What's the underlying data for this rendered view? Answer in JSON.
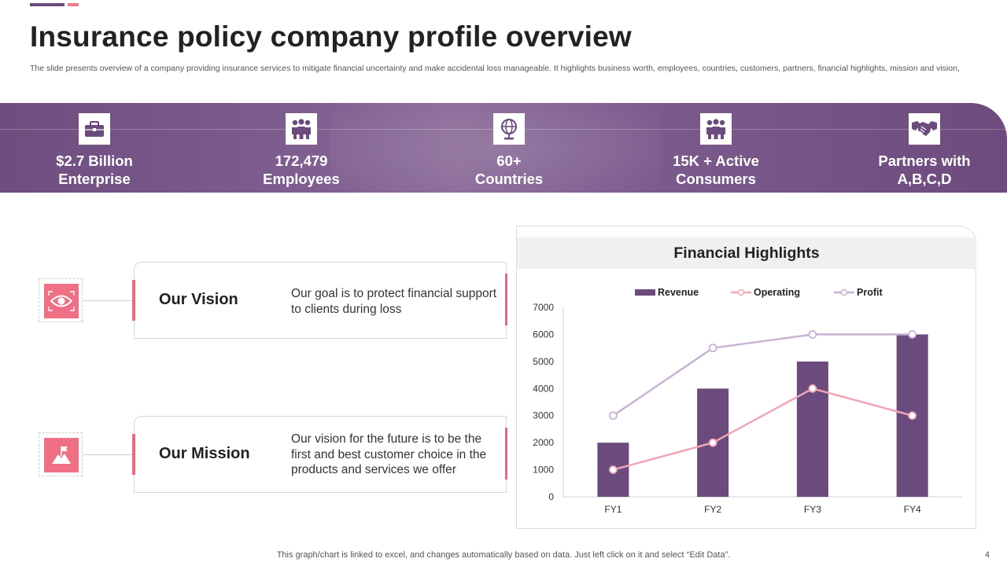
{
  "title": "Insurance policy company profile overview",
  "subtitle": "The slide presents overview of a company providing insurance services to mitigate financial uncertainty and make accidental loss manageable. It highlights business worth, employees, countries, customers, partners, financial highlights, mission and vision,",
  "stats": [
    {
      "line1": "$2.7 Billion",
      "line2": "Enterprise",
      "icon": "briefcase-icon"
    },
    {
      "line1": "172,479",
      "line2": "Employees",
      "icon": "employees-icon"
    },
    {
      "line1": "60+",
      "line2": "Countries",
      "icon": "globe-icon"
    },
    {
      "line1": "15K + Active",
      "line2": "Consumers",
      "icon": "consumers-icon"
    },
    {
      "line1": "Partners with",
      "line2": "A,B,C,D",
      "icon": "handshake-icon"
    }
  ],
  "vision": {
    "title": "Our Vision",
    "text": "Our goal is to protect financial support to clients during loss",
    "icon": "eye-icon"
  },
  "mission": {
    "title": "Our Mission",
    "text": "Our vision for the future is to be the first and best customer choice in the products and services we offer",
    "icon": "flag-mountain-icon"
  },
  "chart_data": {
    "type": "bar",
    "title": "Financial Highlights",
    "categories": [
      "FY1",
      "FY2",
      "FY3",
      "FY4"
    ],
    "series": [
      {
        "name": "Revenue",
        "type": "bar",
        "color": "#6b4a7e",
        "values": [
          2000,
          4000,
          5000,
          6000
        ]
      },
      {
        "name": "Operating",
        "type": "line",
        "color": "#f0a6b5",
        "values": [
          1000,
          2000,
          4000,
          3000
        ]
      },
      {
        "name": "Profit",
        "type": "line",
        "color": "#c8b2d6",
        "values": [
          3000,
          5500,
          6000,
          6000
        ]
      }
    ],
    "ylim": [
      0,
      7000
    ],
    "yticks": [
      0,
      1000,
      2000,
      3000,
      4000,
      5000,
      6000,
      7000
    ],
    "legend": "top",
    "grid": false
  },
  "footer": "This graph/chart is linked to excel, and changes automatically based on data. Just left click on it and select “Edit Data”.",
  "page_number": "4"
}
